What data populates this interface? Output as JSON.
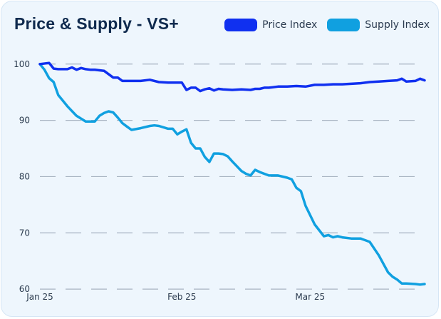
{
  "colors": {
    "price": "#1030f0",
    "supply": "#10a0e0",
    "grid": "#a8b4c2",
    "title": "#0f2a4e"
  },
  "chart_data": {
    "type": "line",
    "title": "Price & Supply - VS+",
    "xlabel": "",
    "ylabel": "",
    "ylim": [
      59,
      102
    ],
    "yticks": [
      60,
      70,
      80,
      90,
      100
    ],
    "xticks": [
      {
        "pos": 0,
        "label": "Jan 25"
      },
      {
        "pos": 31,
        "label": "Feb 25"
      },
      {
        "pos": 59,
        "label": "Mar 25"
      }
    ],
    "xrange": [
      0,
      84
    ],
    "grid": true,
    "legend_position": "top-right",
    "series": [
      {
        "name": "Price Index",
        "color": "#1030f0",
        "x": [
          0,
          2,
          3,
          4,
          6,
          7,
          8,
          9,
          10,
          11,
          12,
          14,
          16,
          17,
          18,
          19,
          20,
          22,
          24,
          26,
          28,
          30,
          31,
          32,
          33,
          34,
          35,
          36,
          37,
          38,
          39,
          40,
          42,
          44,
          46,
          47,
          48,
          49,
          50,
          52,
          54,
          56,
          58,
          60,
          62,
          64,
          66,
          68,
          70,
          72,
          74,
          76,
          78,
          79,
          80,
          82,
          83,
          84
        ],
        "y": [
          100.0,
          100.2,
          99.2,
          99.1,
          99.1,
          99.4,
          99.0,
          99.3,
          99.1,
          99.0,
          99.0,
          98.8,
          97.6,
          97.6,
          97.0,
          97.0,
          97.0,
          97.0,
          97.2,
          96.8,
          96.7,
          96.7,
          96.7,
          95.4,
          95.8,
          95.8,
          95.2,
          95.5,
          95.7,
          95.3,
          95.6,
          95.5,
          95.4,
          95.5,
          95.4,
          95.6,
          95.6,
          95.8,
          95.8,
          96.0,
          96.0,
          96.1,
          96.0,
          96.3,
          96.3,
          96.4,
          96.4,
          96.5,
          96.6,
          96.8,
          96.9,
          97.0,
          97.1,
          97.4,
          96.9,
          97.0,
          97.4,
          97.1
        ]
      },
      {
        "name": "Supply Index",
        "color": "#10a0e0",
        "x": [
          0,
          1,
          2,
          3,
          4,
          6,
          8,
          10,
          12,
          13,
          14,
          15,
          16,
          17,
          18,
          19,
          20,
          22,
          24,
          25,
          26,
          28,
          29,
          30,
          31,
          32,
          33,
          34,
          35,
          36,
          37,
          38,
          39,
          40,
          41,
          42,
          44,
          45,
          46,
          47,
          48,
          50,
          52,
          54,
          55,
          56,
          57,
          58,
          60,
          62,
          63,
          64,
          65,
          66,
          68,
          70,
          72,
          74,
          76,
          77,
          78,
          79,
          80,
          82,
          83,
          84
        ],
        "y": [
          100.0,
          99.0,
          97.5,
          96.8,
          94.5,
          92.5,
          90.8,
          89.8,
          89.8,
          90.8,
          91.3,
          91.6,
          91.4,
          90.5,
          89.5,
          88.9,
          88.3,
          88.6,
          89.0,
          89.1,
          89.0,
          88.5,
          88.5,
          87.5,
          88.0,
          88.4,
          86.0,
          85.0,
          85.0,
          83.5,
          82.6,
          84.1,
          84.1,
          84.0,
          83.6,
          82.7,
          81.0,
          80.5,
          80.2,
          81.2,
          80.8,
          80.2,
          80.2,
          79.8,
          79.5,
          78.0,
          77.4,
          74.8,
          71.5,
          69.4,
          69.6,
          69.2,
          69.4,
          69.2,
          69.0,
          69.0,
          68.4,
          66.0,
          63.0,
          62.2,
          61.7,
          61.0,
          61.0,
          60.9,
          60.8,
          60.9
        ]
      }
    ]
  }
}
